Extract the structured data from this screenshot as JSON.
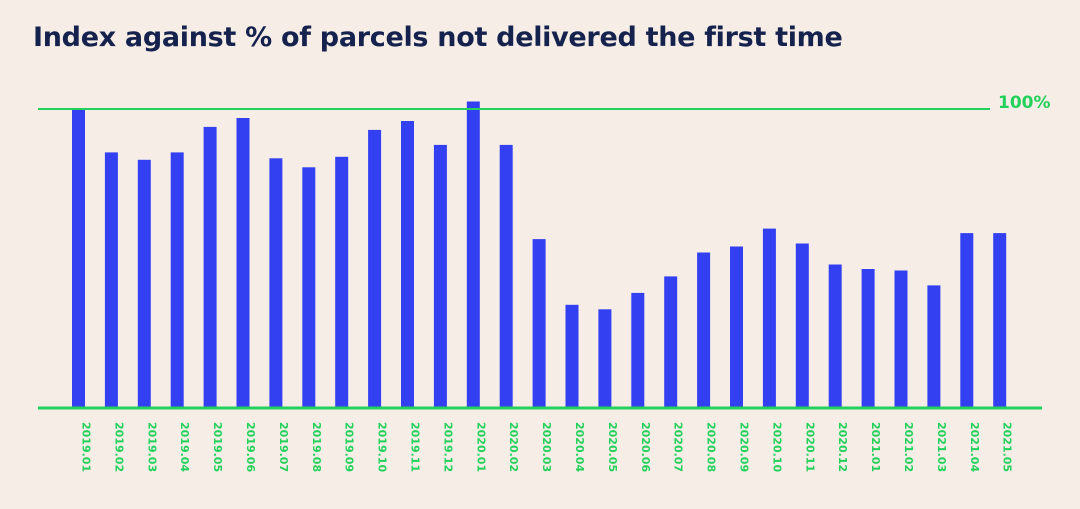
{
  "chart_data": {
    "type": "bar",
    "title": "Index against % of parcels not delivered the first time",
    "categories": [
      "2019.01",
      "2019.02",
      "2019.03",
      "2019.04",
      "2019.05",
      "2019.06",
      "2019.07",
      "2019.08",
      "2019.09",
      "2019.10",
      "2019.11",
      "2019.12",
      "2020.01",
      "2020.02",
      "2020.03",
      "2020.04",
      "2020.05",
      "2020.06",
      "2020.07",
      "2020.08",
      "2020.09",
      "2020.10",
      "2020.11",
      "2020.12",
      "2021.01",
      "2021.02",
      "2021.03",
      "2021.04",
      "2021.05"
    ],
    "values": [
      100,
      85.5,
      83,
      85.5,
      94,
      97,
      83.5,
      80.5,
      84,
      93,
      96,
      88,
      102.5,
      88,
      56.5,
      34.5,
      33,
      38.5,
      44,
      52,
      54,
      60,
      55,
      48,
      46.5,
      46,
      41,
      58.5,
      58.5
    ],
    "reference_line": {
      "value": 100,
      "label": "100%"
    },
    "ylim": [
      0,
      100
    ],
    "xlabel": "",
    "ylabel": "",
    "grid": false,
    "colors": {
      "bar": "#3340f2",
      "accent": "#22d15a",
      "title": "#15224e",
      "background": "#f6ede6"
    }
  }
}
